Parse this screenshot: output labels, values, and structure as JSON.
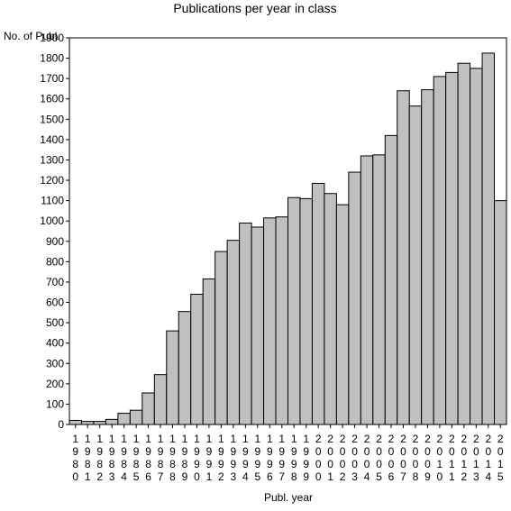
{
  "chart_data": {
    "type": "bar",
    "title": "Publications per year in class",
    "ylabel": "No. of Publ.",
    "xlabel": "Publ. year",
    "ylim": [
      0,
      1900
    ],
    "yticks": [
      0,
      100,
      200,
      300,
      400,
      500,
      600,
      700,
      800,
      900,
      1000,
      1100,
      1200,
      1300,
      1400,
      1500,
      1600,
      1700,
      1800,
      1900
    ],
    "grid": false,
    "bar_color": "#c0c0c0",
    "categories": [
      "1980",
      "1981",
      "1982",
      "1983",
      "1984",
      "1985",
      "1986",
      "1987",
      "1988",
      "1989",
      "1990",
      "1991",
      "1992",
      "1993",
      "1994",
      "1995",
      "1996",
      "1997",
      "1998",
      "1999",
      "2000",
      "2001",
      "2002",
      "2003",
      "2004",
      "2005",
      "2006",
      "2007",
      "2008",
      "2009",
      "2010",
      "2011",
      "2012",
      "2013",
      "2014",
      "2015"
    ],
    "values": [
      20,
      15,
      15,
      25,
      55,
      70,
      155,
      245,
      460,
      555,
      640,
      715,
      850,
      905,
      990,
      970,
      1015,
      1020,
      1115,
      1110,
      1185,
      1135,
      1080,
      1240,
      1320,
      1325,
      1420,
      1640,
      1565,
      1645,
      1710,
      1730,
      1775,
      1750,
      1825,
      1100
    ]
  }
}
